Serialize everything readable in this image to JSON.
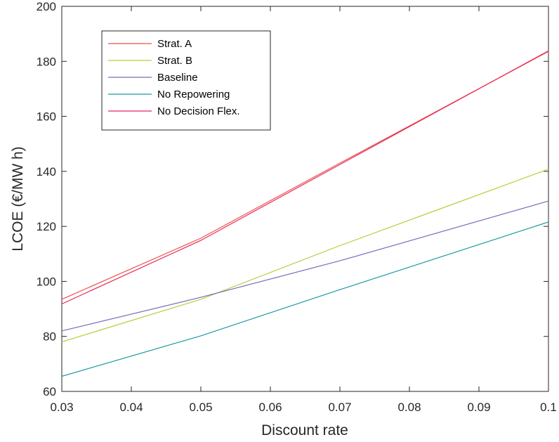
{
  "chart_data": {
    "type": "line",
    "xlabel": "Discount rate",
    "ylabel": "LCOE  (€/MW h)",
    "xlim": [
      0.03,
      0.1
    ],
    "ylim": [
      60,
      200
    ],
    "xticks": [
      0.03,
      0.04,
      0.05,
      0.06,
      0.07,
      0.08,
      0.09,
      0.1
    ],
    "xtick_labels": [
      "0.03",
      "0.04",
      "0.05",
      "0.06",
      "0.07",
      "0.08",
      "0.09",
      "0.1"
    ],
    "yticks": [
      60,
      80,
      100,
      120,
      140,
      160,
      180,
      200
    ],
    "ytick_labels": [
      "60",
      "80",
      "100",
      "120",
      "140",
      "160",
      "180",
      "200"
    ],
    "grid": false,
    "legend_position": "top-left",
    "x": [
      0.03,
      0.05,
      0.07,
      0.1
    ],
    "series": [
      {
        "name": "Strat. A",
        "color": "#e8534a",
        "values": [
          93.5,
          115.7,
          143.0,
          183.6
        ]
      },
      {
        "name": "Strat. B",
        "color": "#b7cf3c",
        "values": [
          78.0,
          93.5,
          113.0,
          140.8
        ]
      },
      {
        "name": "Baseline",
        "color": "#6e72b8",
        "values": [
          82.0,
          94.2,
          107.5,
          129.2
        ]
      },
      {
        "name": "No Repowering",
        "color": "#1f9aa0",
        "values": [
          65.5,
          80.2,
          97.0,
          121.6
        ]
      },
      {
        "name": "No Decision Flex.",
        "color": "#e8285a",
        "values": [
          91.8,
          114.9,
          142.5,
          183.8
        ]
      }
    ]
  }
}
